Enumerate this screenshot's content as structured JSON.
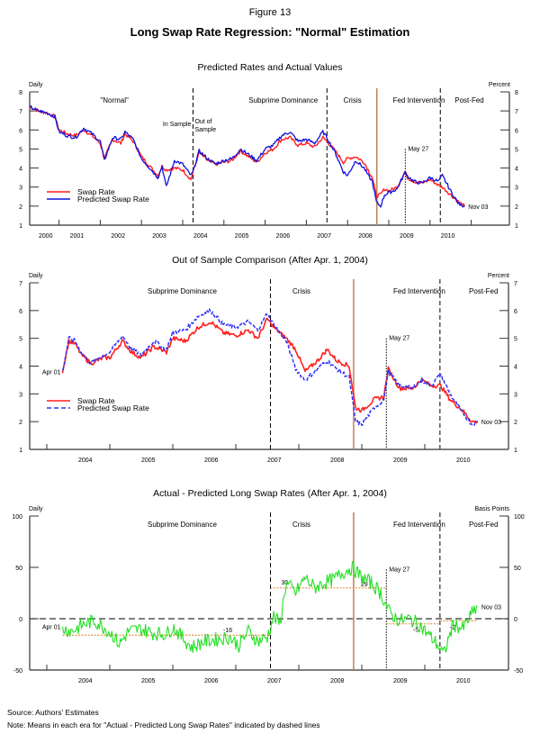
{
  "figure": {
    "number": "Figure 13",
    "title": "Long Swap Rate Regression: \"Normal\" Estimation",
    "source": "Source: Authors' Estimates",
    "note": "Note: Means in each era for \"Actual - Predicted Long Swap Rates\" indicated by dashed lines"
  },
  "colors": {
    "swap": "#ff2020",
    "predicted": "#1010e0",
    "predicted_dashed": "#3030ff",
    "residual": "#22e022",
    "lehman": "#c08050",
    "means": "#e89040"
  },
  "chart_data": [
    {
      "type": "line",
      "title": "Predicted Rates and Actual Values",
      "left_unit": "Daily",
      "right_unit": "Percent",
      "xlim": [
        2000.3,
        2011.9
      ],
      "ylim": [
        1,
        8
      ],
      "yticks": [
        1,
        2,
        3,
        4,
        5,
        6,
        7,
        8
      ],
      "xtick_years": [
        "2000",
        "2001",
        "2002",
        "2003",
        "2004",
        "2005",
        "2006",
        "2007",
        "2008",
        "2009",
        "2010"
      ],
      "eras": [
        {
          "label": "\"Normal\"",
          "center": 2002.0
        },
        {
          "label": "Subprime Dominance",
          "center": 2005.6
        },
        {
          "label": "Crisis",
          "center": 2007.9
        },
        {
          "label": "Fed Intervention",
          "center": 2009.1
        },
        {
          "label": "Post-Fed",
          "center": 2010.6
        }
      ],
      "vlines": [
        {
          "x": 2004.25,
          "style": "dashed",
          "label": "In Sample | Out of Sample"
        },
        {
          "x": 2007.5,
          "style": "dashed"
        },
        {
          "x": 2008.71,
          "style": "lehman"
        },
        {
          "x": 2009.4,
          "style": "dotted",
          "label": "May 27"
        },
        {
          "x": 2010.25,
          "style": "dashed"
        }
      ],
      "annotations": {
        "in_sample": "In Sample",
        "out_sample_1": "Out of",
        "out_sample_2": "Sample",
        "may27": "May 27",
        "end": "Nov 03"
      },
      "legend": [
        "Swap Rate",
        "Predicted Swap Rate"
      ],
      "series": [
        {
          "name": "Swap Rate",
          "x": [
            2000.3,
            2000.5,
            2000.7,
            2000.9,
            2001.0,
            2001.2,
            2001.4,
            2001.6,
            2001.8,
            2002.0,
            2002.1,
            2002.3,
            2002.5,
            2002.6,
            2002.8,
            2003.0,
            2003.2,
            2003.4,
            2003.5,
            2003.6,
            2003.8,
            2004.0,
            2004.2,
            2004.25,
            2004.4,
            2004.6,
            2004.8,
            2005.0,
            2005.2,
            2005.4,
            2005.6,
            2005.8,
            2006.0,
            2006.2,
            2006.4,
            2006.6,
            2006.8,
            2007.0,
            2007.2,
            2007.4,
            2007.5,
            2007.7,
            2007.9,
            2008.0,
            2008.2,
            2008.4,
            2008.5,
            2008.6,
            2008.7,
            2008.8,
            2008.9,
            2009.0,
            2009.2,
            2009.4,
            2009.45,
            2009.6,
            2009.8,
            2010.0,
            2010.2,
            2010.3,
            2010.5,
            2010.7,
            2010.84
          ],
          "y": [
            7.2,
            7.0,
            6.9,
            6.7,
            6.0,
            5.8,
            5.7,
            6.0,
            5.7,
            5.3,
            4.5,
            5.5,
            5.3,
            5.8,
            5.4,
            4.6,
            4.1,
            3.6,
            4.1,
            3.9,
            4.0,
            3.9,
            3.4,
            3.8,
            4.8,
            4.4,
            4.2,
            4.3,
            4.4,
            4.9,
            4.6,
            4.3,
            4.8,
            5.0,
            5.5,
            5.6,
            5.2,
            5.3,
            5.1,
            5.6,
            5.4,
            4.9,
            4.3,
            4.5,
            4.6,
            4.3,
            3.9,
            3.5,
            2.5,
            2.6,
            2.9,
            2.8,
            3.0,
            3.8,
            3.5,
            3.3,
            3.2,
            3.4,
            3.1,
            3.0,
            2.6,
            2.2,
            2.0
          ]
        },
        {
          "name": "Predicted Swap Rate",
          "x": [
            2000.3,
            2000.5,
            2000.7,
            2000.9,
            2001.0,
            2001.2,
            2001.4,
            2001.6,
            2001.8,
            2002.0,
            2002.1,
            2002.3,
            2002.5,
            2002.6,
            2002.8,
            2003.0,
            2003.2,
            2003.4,
            2003.5,
            2003.6,
            2003.8,
            2004.0,
            2004.2,
            2004.25,
            2004.4,
            2004.6,
            2004.8,
            2005.0,
            2005.2,
            2005.4,
            2005.6,
            2005.8,
            2006.0,
            2006.2,
            2006.4,
            2006.6,
            2006.8,
            2007.0,
            2007.2,
            2007.4,
            2007.5,
            2007.7,
            2007.9,
            2008.0,
            2008.2,
            2008.4,
            2008.5,
            2008.6,
            2008.7,
            2008.8,
            2008.9,
            2009.0,
            2009.2,
            2009.4,
            2009.45,
            2009.6,
            2009.8,
            2010.0,
            2010.2,
            2010.3,
            2010.5,
            2010.7,
            2010.84
          ],
          "y": [
            7.2,
            7.0,
            6.9,
            6.7,
            5.9,
            5.7,
            5.6,
            6.1,
            5.8,
            5.4,
            4.4,
            5.6,
            5.5,
            5.9,
            5.5,
            4.5,
            4.0,
            3.5,
            4.1,
            3.0,
            4.4,
            4.2,
            3.6,
            3.8,
            4.9,
            4.5,
            4.2,
            4.4,
            4.5,
            5.0,
            4.7,
            4.4,
            5.0,
            5.2,
            5.7,
            5.9,
            5.4,
            5.5,
            5.3,
            5.9,
            5.6,
            4.8,
            3.8,
            3.6,
            4.4,
            4.0,
            3.6,
            3.3,
            2.2,
            2.0,
            2.6,
            2.7,
            2.9,
            3.8,
            3.6,
            3.3,
            3.2,
            3.5,
            3.3,
            3.6,
            2.8,
            2.1,
            2.0
          ]
        }
      ]
    },
    {
      "type": "line",
      "title": "Out of Sample Comparison (After Apr. 1, 2004)",
      "left_unit": "Daily",
      "right_unit": "Percent",
      "xlim": [
        2003.72,
        2011.33
      ],
      "ylim": [
        1,
        7
      ],
      "yticks": [
        1,
        2,
        3,
        4,
        5,
        6,
        7
      ],
      "xtick_years": [
        "2004",
        "2005",
        "2006",
        "2007",
        "2008",
        "2009",
        "2010"
      ],
      "eras": [
        {
          "label": "Subprime Dominance",
          "center": 2005.6
        },
        {
          "label": "Crisis",
          "center": 2007.9
        },
        {
          "label": "Fed Intervention",
          "center": 2009.5
        },
        {
          "label": "Post-Fed",
          "center": 2010.7
        }
      ],
      "vlines": [
        {
          "x": 2007.55,
          "style": "dashed"
        },
        {
          "x": 2008.87,
          "style": "lehman"
        },
        {
          "x": 2009.39,
          "style": "dotted",
          "label": "May 27"
        },
        {
          "x": 2010.24,
          "style": "dashed-gray"
        }
      ],
      "annotations": {
        "start": "Apr 01",
        "may27": "May 27",
        "end": "Nov 03"
      },
      "legend": [
        "Swap Rate",
        "Predicted Swap Rate"
      ],
      "series": [
        {
          "name": "Swap Rate",
          "x": [
            2004.25,
            2004.35,
            2004.45,
            2004.55,
            2004.7,
            2004.9,
            2005.0,
            2005.2,
            2005.35,
            2005.5,
            2005.7,
            2005.9,
            2006.0,
            2006.2,
            2006.4,
            2006.6,
            2006.8,
            2007.0,
            2007.2,
            2007.35,
            2007.5,
            2007.6,
            2007.8,
            2007.95,
            2008.1,
            2008.3,
            2008.45,
            2008.6,
            2008.8,
            2008.9,
            2009.0,
            2009.2,
            2009.35,
            2009.42,
            2009.6,
            2009.8,
            2009.95,
            2010.1,
            2010.25,
            2010.4,
            2010.6,
            2010.75,
            2010.84
          ],
          "y": [
            3.8,
            4.9,
            4.8,
            4.4,
            4.1,
            4.3,
            4.3,
            4.9,
            4.5,
            4.3,
            4.7,
            4.5,
            5.0,
            4.9,
            5.4,
            5.6,
            5.2,
            5.1,
            5.3,
            5.0,
            5.7,
            5.4,
            5.0,
            4.6,
            3.8,
            4.2,
            4.6,
            4.2,
            4.0,
            2.5,
            2.4,
            2.8,
            2.9,
            3.9,
            3.2,
            3.2,
            3.5,
            3.3,
            3.3,
            2.8,
            2.4,
            2.0,
            2.0
          ]
        },
        {
          "name": "Predicted Swap Rate",
          "x": [
            2004.25,
            2004.35,
            2004.45,
            2004.55,
            2004.7,
            2004.9,
            2005.0,
            2005.2,
            2005.35,
            2005.5,
            2005.7,
            2005.9,
            2006.0,
            2006.2,
            2006.4,
            2006.6,
            2006.8,
            2007.0,
            2007.2,
            2007.35,
            2007.5,
            2007.6,
            2007.8,
            2007.95,
            2008.1,
            2008.3,
            2008.45,
            2008.6,
            2008.8,
            2008.9,
            2009.0,
            2009.2,
            2009.35,
            2009.42,
            2009.6,
            2009.8,
            2009.95,
            2010.1,
            2010.25,
            2010.4,
            2010.6,
            2010.75,
            2010.84
          ],
          "y": [
            3.8,
            5.0,
            4.9,
            4.5,
            4.1,
            4.4,
            4.5,
            5.1,
            4.6,
            4.4,
            4.9,
            4.6,
            5.2,
            5.3,
            5.8,
            6.0,
            5.5,
            5.4,
            5.6,
            5.3,
            5.9,
            5.5,
            4.9,
            3.9,
            3.5,
            3.9,
            4.2,
            3.9,
            3.6,
            2.0,
            1.9,
            2.5,
            2.8,
            3.8,
            3.3,
            3.2,
            3.5,
            3.3,
            3.7,
            3.0,
            2.3,
            1.9,
            2.0
          ]
        }
      ]
    },
    {
      "type": "line",
      "title": "Actual - Predicted Long Swap Rates (After Apr. 1, 2004)",
      "left_unit": "Daily",
      "right_unit": "Basis Points",
      "xlim": [
        2003.72,
        2011.33
      ],
      "ylim": [
        -50,
        100
      ],
      "yticks": [
        -50,
        0,
        50,
        100
      ],
      "xtick_years": [
        "2004",
        "2005",
        "2006",
        "2007",
        "2008",
        "2009",
        "2010"
      ],
      "eras": [
        {
          "label": "Subprime Dominance",
          "center": 2005.6
        },
        {
          "label": "Crisis",
          "center": 2007.9
        },
        {
          "label": "Fed Intervention",
          "center": 2009.5
        },
        {
          "label": "Post-Fed",
          "center": 2010.7
        }
      ],
      "vlines": [
        {
          "x": 2007.55,
          "style": "dashed"
        },
        {
          "x": 2008.87,
          "style": "lehman"
        },
        {
          "x": 2009.39,
          "style": "dotted",
          "label": "May 27"
        },
        {
          "x": 2010.24,
          "style": "dashed-gray"
        }
      ],
      "era_means": [
        {
          "from": 2004.25,
          "to": 2007.55,
          "value": -16,
          "label": "-16"
        },
        {
          "from": 2007.55,
          "to": 2009.39,
          "value": 30,
          "label": "30"
        },
        {
          "from": 2008.87,
          "to": 2009.39,
          "value": 29,
          "label": "29"
        },
        {
          "from": 2009.39,
          "to": 2010.24,
          "value": -5,
          "label": "-5"
        },
        {
          "from": 2010.24,
          "to": 2010.84,
          "value": -2,
          "label": "-2"
        }
      ],
      "annotations": {
        "start": "Apr 01",
        "may27": "May 27",
        "end": "Nov 03"
      },
      "series": [
        {
          "name": "Actual - Predicted",
          "x": [
            2004.25,
            2004.4,
            2004.6,
            2004.75,
            2004.9,
            2005.05,
            2005.15,
            2005.3,
            2005.5,
            2005.7,
            2005.9,
            2006.0,
            2006.15,
            2006.3,
            2006.5,
            2006.7,
            2006.9,
            2007.05,
            2007.2,
            2007.35,
            2007.5,
            2007.6,
            2007.7,
            2007.8,
            2007.95,
            2008.1,
            2008.25,
            2008.4,
            2008.55,
            2008.7,
            2008.85,
            2009.0,
            2009.15,
            2009.3,
            2009.45,
            2009.6,
            2009.75,
            2009.9,
            2010.05,
            2010.2,
            2010.3,
            2010.45,
            2010.6,
            2010.75,
            2010.84
          ],
          "y": [
            -10,
            -12,
            -5,
            -2,
            -8,
            -16,
            -25,
            -12,
            -10,
            -14,
            -15,
            -8,
            -18,
            -28,
            -22,
            -20,
            -18,
            -26,
            -12,
            -22,
            -18,
            2,
            -5,
            35,
            25,
            40,
            30,
            35,
            38,
            45,
            50,
            40,
            35,
            25,
            5,
            -2,
            0,
            -5,
            -15,
            -25,
            -35,
            -5,
            -10,
            5,
            12
          ]
        }
      ]
    }
  ]
}
